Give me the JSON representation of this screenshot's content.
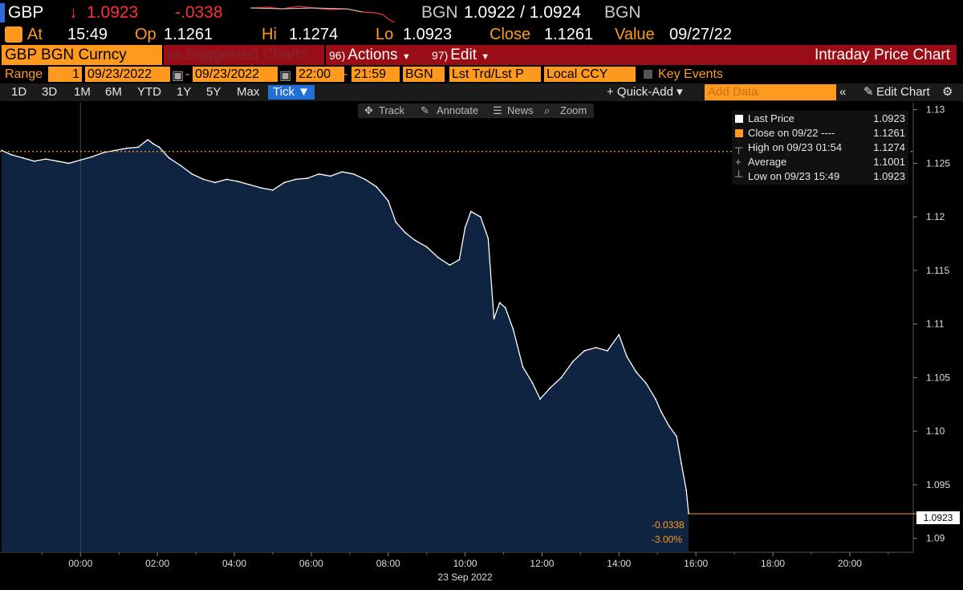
{
  "ticker": {
    "symbol": "GBP",
    "arrow": "↓",
    "last": "1.0923",
    "change": "-.0338",
    "source": "BGN",
    "bid_ask": "1.0922 / 1.0924",
    "source2": "BGN"
  },
  "stats": {
    "at_label": "At",
    "time": "15:49",
    "op_label": "Op",
    "open": "1.1261",
    "hi_label": "Hi",
    "high": "1.1274",
    "lo_label": "Lo",
    "low": "1.0923",
    "close_label": "Close",
    "close": "1.1261",
    "value_label": "Value",
    "value_date": "09/27/22"
  },
  "function_bar": {
    "security": "GBP BGN Curncy",
    "suggested_num": "94)",
    "suggested": "Suggested Charts",
    "actions_num": "96)",
    "actions": "Actions",
    "edit_num": "97)",
    "edit": "Edit",
    "title": "Intraday Price Chart"
  },
  "range_bar": {
    "range_label": "Range",
    "range_value": "1",
    "start_date": "09/23/2022",
    "end_date": "09/23/2022",
    "start_time": "22:00",
    "end_time": "21:59",
    "source": "BGN",
    "field": "Lst Trd/Lst P",
    "currency": "Local CCY",
    "key_events": "Key Events"
  },
  "period_bar": {
    "periods": [
      "1D",
      "3D",
      "1M",
      "6M",
      "YTD",
      "1Y",
      "5Y",
      "Max"
    ],
    "tick": "Tick ▼",
    "quick_add": "+ Quick-Add ▾",
    "add_data_placeholder": "Add Data",
    "collapse": "«",
    "edit_chart": "Edit Chart",
    "gear": "⚙"
  },
  "chart_tools": {
    "track": "Track",
    "annotate": "Annotate",
    "news": "News",
    "zoom": "Zoom"
  },
  "legend": {
    "last_price_label": "Last Price",
    "last_price": "1.0923",
    "close_label": "Close on 09/22 ----",
    "close": "1.1261",
    "high_label": "High on 09/23 01:54",
    "high": "1.1274",
    "avg_label": "Average",
    "avg": "1.1001",
    "low_label": "Low on 09/23 15:49",
    "low": "1.0923"
  },
  "colors": {
    "area_fill": "#0e2441",
    "line": "#ffffff",
    "accent": "#ff9a1f",
    "red": "#ff3030",
    "title_bar": "#9b0d16"
  },
  "chart_data": {
    "type": "area",
    "x_label_date": "23 Sep 2022",
    "x_ticks": [
      "00:00",
      "02:00",
      "04:00",
      "06:00",
      "08:00",
      "10:00",
      "12:00",
      "14:00",
      "16:00",
      "18:00",
      "20:00"
    ],
    "y_ticks": [
      "1.13",
      "1.125",
      "1.12",
      "1.115",
      "1.11",
      "1.105",
      "1.10",
      "1.095",
      "1.09"
    ],
    "ylim": [
      1.0887,
      1.1305
    ],
    "xlim_hours": [
      -2.05,
      21.65
    ],
    "reference_line": 1.1261,
    "last_price_label": "1.0923",
    "change_abs": "-0.0338",
    "change_pct": "-3.00%",
    "series": [
      {
        "x": [
          -2.05,
          -1.8,
          -1.5,
          -1.2,
          -0.9,
          -0.6,
          -0.3,
          0.0,
          0.3,
          0.6,
          0.9,
          1.2,
          1.5,
          1.75,
          1.9,
          2.05,
          2.3,
          2.6,
          2.9,
          3.2,
          3.5,
          3.8,
          4.1,
          4.4,
          4.7,
          5.0,
          5.3,
          5.6,
          5.9,
          6.2,
          6.5,
          6.8,
          7.1,
          7.4,
          7.7,
          8.0,
          8.2,
          8.45,
          8.7,
          9.0,
          9.3,
          9.6,
          9.85,
          10.0,
          10.15,
          10.4,
          10.6,
          10.75,
          10.9,
          11.05,
          11.25,
          11.5,
          11.75,
          11.95,
          12.2,
          12.5,
          12.8,
          13.1,
          13.4,
          13.7,
          14.0,
          14.2,
          14.45,
          14.7,
          14.95,
          15.1,
          15.3,
          15.5,
          15.62,
          15.75,
          15.81
        ],
        "y": [
          1.1262,
          1.1258,
          1.1255,
          1.1252,
          1.1254,
          1.1252,
          1.125,
          1.1253,
          1.1256,
          1.126,
          1.1262,
          1.1264,
          1.1265,
          1.1272,
          1.1268,
          1.1265,
          1.1255,
          1.1248,
          1.124,
          1.1235,
          1.1232,
          1.1235,
          1.1233,
          1.123,
          1.1227,
          1.1225,
          1.1232,
          1.1235,
          1.1236,
          1.124,
          1.1238,
          1.1242,
          1.124,
          1.1235,
          1.1228,
          1.1215,
          1.1195,
          1.1185,
          1.1178,
          1.1172,
          1.1162,
          1.1155,
          1.116,
          1.119,
          1.1205,
          1.12,
          1.118,
          1.1105,
          1.112,
          1.1115,
          1.1095,
          1.106,
          1.1045,
          1.103,
          1.104,
          1.105,
          1.1065,
          1.1075,
          1.1078,
          1.1075,
          1.109,
          1.107,
          1.1055,
          1.1045,
          1.103,
          1.1018,
          1.1005,
          1.0995,
          1.097,
          1.0945,
          1.0923
        ]
      }
    ]
  }
}
